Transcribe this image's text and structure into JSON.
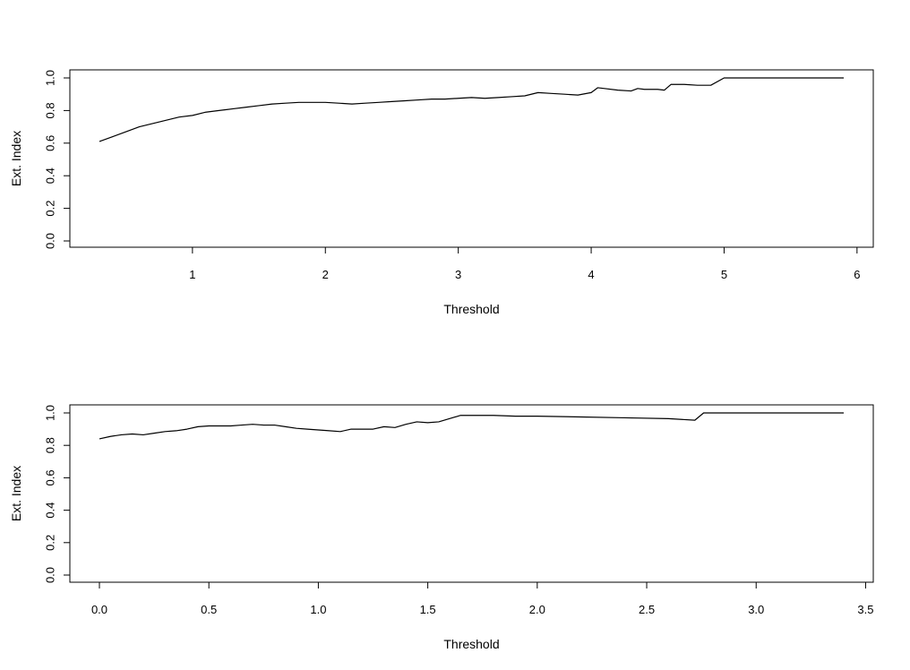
{
  "chart_data": [
    {
      "type": "line",
      "title": "",
      "xlabel": "Threshold",
      "ylabel": "Ext. Index",
      "xlim": [
        0.3,
        5.9
      ],
      "ylim": [
        0,
        1
      ],
      "xticks": [
        1,
        2,
        3,
        4,
        5,
        6
      ],
      "xtick_labels": [
        "1",
        "2",
        "3",
        "4",
        "5",
        "6"
      ],
      "yticks": [
        0,
        0.2,
        0.4,
        0.6,
        0.8,
        1.0
      ],
      "ytick_labels": [
        "0.0",
        "0.2",
        "0.4",
        "0.6",
        "0.8",
        "1.0"
      ],
      "grid": false,
      "series": [
        {
          "color": "#000000",
          "x": [
            0.3,
            0.4,
            0.5,
            0.6,
            0.7,
            0.8,
            0.9,
            1.0,
            1.1,
            1.2,
            1.3,
            1.4,
            1.5,
            1.6,
            1.7,
            1.8,
            1.9,
            2.0,
            2.1,
            2.2,
            2.3,
            2.4,
            2.5,
            2.6,
            2.7,
            2.8,
            2.9,
            3.0,
            3.1,
            3.2,
            3.3,
            3.4,
            3.5,
            3.6,
            3.7,
            3.8,
            3.9,
            4.0,
            4.05,
            4.1,
            4.2,
            4.3,
            4.35,
            4.4,
            4.5,
            4.55,
            4.6,
            4.7,
            4.8,
            4.9,
            5.0,
            5.3,
            5.6,
            5.9
          ],
          "y": [
            0.61,
            0.64,
            0.67,
            0.7,
            0.72,
            0.74,
            0.76,
            0.77,
            0.79,
            0.8,
            0.81,
            0.82,
            0.83,
            0.84,
            0.845,
            0.85,
            0.85,
            0.85,
            0.845,
            0.84,
            0.845,
            0.85,
            0.855,
            0.86,
            0.865,
            0.87,
            0.87,
            0.875,
            0.88,
            0.875,
            0.88,
            0.885,
            0.89,
            0.91,
            0.905,
            0.9,
            0.895,
            0.91,
            0.94,
            0.935,
            0.925,
            0.92,
            0.935,
            0.93,
            0.93,
            0.925,
            0.96,
            0.96,
            0.955,
            0.955,
            1.0,
            1.0,
            1.0,
            1.0
          ]
        }
      ]
    },
    {
      "type": "line",
      "title": "",
      "xlabel": "Threshold",
      "ylabel": "Ext. Index",
      "xlim": [
        0.0,
        3.4
      ],
      "ylim": [
        0,
        1
      ],
      "xticks": [
        0.0,
        0.5,
        1.0,
        1.5,
        2.0,
        2.5,
        3.0,
        3.5
      ],
      "xtick_labels": [
        "0.0",
        "0.5",
        "1.0",
        "1.5",
        "2.0",
        "2.5",
        "3.0",
        "3.5"
      ],
      "yticks": [
        0,
        0.2,
        0.4,
        0.6,
        0.8,
        1.0
      ],
      "ytick_labels": [
        "0.0",
        "0.2",
        "0.4",
        "0.6",
        "0.8",
        "1.0"
      ],
      "grid": false,
      "series": [
        {
          "color": "#000000",
          "x": [
            0.0,
            0.05,
            0.1,
            0.15,
            0.2,
            0.25,
            0.3,
            0.35,
            0.4,
            0.45,
            0.5,
            0.55,
            0.6,
            0.65,
            0.7,
            0.75,
            0.8,
            0.85,
            0.9,
            0.95,
            1.0,
            1.05,
            1.1,
            1.15,
            1.2,
            1.25,
            1.3,
            1.35,
            1.4,
            1.45,
            1.5,
            1.55,
            1.6,
            1.65,
            1.7,
            1.8,
            1.9,
            2.0,
            2.2,
            2.4,
            2.6,
            2.72,
            2.76,
            3.0,
            3.4
          ],
          "y": [
            0.84,
            0.855,
            0.865,
            0.87,
            0.865,
            0.875,
            0.885,
            0.89,
            0.9,
            0.915,
            0.92,
            0.92,
            0.92,
            0.925,
            0.93,
            0.925,
            0.925,
            0.915,
            0.905,
            0.9,
            0.895,
            0.89,
            0.885,
            0.9,
            0.9,
            0.9,
            0.915,
            0.91,
            0.93,
            0.945,
            0.94,
            0.945,
            0.965,
            0.985,
            0.985,
            0.985,
            0.98,
            0.98,
            0.975,
            0.97,
            0.965,
            0.955,
            1.0,
            1.0,
            1.0
          ]
        }
      ]
    }
  ]
}
